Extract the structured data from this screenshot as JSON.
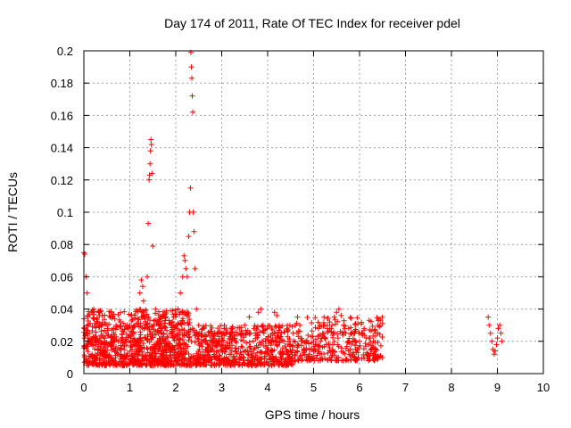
{
  "chart_data": {
    "type": "scatter",
    "title": "Day 174 of 2011, Rate Of TEC Index for receiver pdel",
    "xlabel": "GPS time / hours",
    "ylabel": "ROTI / TECUs",
    "xlim": [
      0,
      10
    ],
    "ylim": [
      0,
      0.2
    ],
    "x_ticks": [
      "0",
      "1",
      "2",
      "3",
      "4",
      "5",
      "6",
      "7",
      "8",
      "9",
      "10"
    ],
    "y_ticks": [
      "0",
      "0.02",
      "0.04",
      "0.06",
      "0.08",
      "0.1",
      "0.12",
      "0.14",
      "0.16",
      "0.18",
      "0.2"
    ],
    "grid": true,
    "marker": "+",
    "color": "#ff0000",
    "series": [
      {
        "name": "ROTI",
        "points": [
          [
            0.0,
            0.075
          ],
          [
            0.02,
            0.074
          ],
          [
            0.05,
            0.06
          ],
          [
            0.07,
            0.05
          ],
          [
            0.08,
            0.035
          ],
          [
            0.1,
            0.03
          ],
          [
            0.12,
            0.025
          ],
          [
            0.15,
            0.02
          ],
          [
            0.18,
            0.012
          ],
          [
            0.22,
            0.01
          ],
          [
            0.25,
            0.008
          ],
          [
            0.3,
            0.015
          ],
          [
            0.35,
            0.03
          ],
          [
            0.4,
            0.036
          ],
          [
            0.45,
            0.02
          ],
          [
            0.5,
            0.012
          ],
          [
            0.55,
            0.01
          ],
          [
            0.6,
            0.018
          ],
          [
            0.65,
            0.025
          ],
          [
            0.7,
            0.03
          ],
          [
            0.75,
            0.02
          ],
          [
            0.8,
            0.015
          ],
          [
            0.85,
            0.01
          ],
          [
            0.9,
            0.02
          ],
          [
            0.95,
            0.028
          ],
          [
            1.0,
            0.03
          ],
          [
            1.05,
            0.025
          ],
          [
            1.1,
            0.018
          ],
          [
            1.15,
            0.012
          ],
          [
            1.2,
            0.02
          ],
          [
            1.22,
            0.05
          ],
          [
            1.25,
            0.058
          ],
          [
            1.28,
            0.054
          ],
          [
            1.3,
            0.045
          ],
          [
            1.32,
            0.035
          ],
          [
            1.35,
            0.03
          ],
          [
            1.38,
            0.06
          ],
          [
            1.4,
            0.093
          ],
          [
            1.42,
            0.12
          ],
          [
            1.43,
            0.123
          ],
          [
            1.44,
            0.13
          ],
          [
            1.45,
            0.138
          ],
          [
            1.46,
            0.145
          ],
          [
            1.47,
            0.142
          ],
          [
            1.48,
            0.124
          ],
          [
            1.5,
            0.079
          ],
          [
            1.52,
            0.03
          ],
          [
            1.55,
            0.025
          ],
          [
            1.6,
            0.02
          ],
          [
            1.65,
            0.03
          ],
          [
            1.7,
            0.028
          ],
          [
            1.75,
            0.02
          ],
          [
            1.8,
            0.015
          ],
          [
            1.85,
            0.01
          ],
          [
            1.9,
            0.03
          ],
          [
            1.95,
            0.035
          ],
          [
            2.0,
            0.03
          ],
          [
            2.05,
            0.04
          ],
          [
            2.1,
            0.05
          ],
          [
            2.15,
            0.06
          ],
          [
            2.18,
            0.073
          ],
          [
            2.2,
            0.07
          ],
          [
            2.22,
            0.065
          ],
          [
            2.25,
            0.06
          ],
          [
            2.28,
            0.085
          ],
          [
            2.3,
            0.1
          ],
          [
            2.32,
            0.115
          ],
          [
            2.33,
            0.199
          ],
          [
            2.34,
            0.19
          ],
          [
            2.35,
            0.183
          ],
          [
            2.36,
            0.172
          ],
          [
            2.37,
            0.162
          ],
          [
            2.38,
            0.1
          ],
          [
            2.4,
            0.088
          ],
          [
            2.42,
            0.065
          ],
          [
            2.45,
            0.04
          ],
          [
            2.5,
            0.03
          ],
          [
            2.55,
            0.025
          ],
          [
            2.6,
            0.02
          ],
          [
            2.65,
            0.015
          ],
          [
            2.7,
            0.012
          ],
          [
            2.75,
            0.01
          ],
          [
            2.8,
            0.015
          ],
          [
            2.85,
            0.02
          ],
          [
            2.9,
            0.025
          ],
          [
            2.95,
            0.02
          ],
          [
            3.0,
            0.018
          ],
          [
            3.05,
            0.015
          ],
          [
            3.1,
            0.01
          ],
          [
            3.15,
            0.008
          ],
          [
            3.2,
            0.012
          ],
          [
            3.3,
            0.02
          ],
          [
            3.4,
            0.025
          ],
          [
            3.5,
            0.03
          ],
          [
            3.6,
            0.035
          ],
          [
            3.7,
            0.028
          ],
          [
            3.8,
            0.038
          ],
          [
            3.85,
            0.04
          ],
          [
            3.9,
            0.03
          ],
          [
            3.95,
            0.02
          ],
          [
            4.0,
            0.015
          ],
          [
            4.05,
            0.02
          ],
          [
            4.1,
            0.025
          ],
          [
            4.15,
            0.038
          ],
          [
            4.2,
            0.036
          ],
          [
            4.25,
            0.03
          ],
          [
            4.3,
            0.025
          ],
          [
            4.35,
            0.02
          ],
          [
            4.4,
            0.015
          ],
          [
            4.45,
            0.012
          ],
          [
            4.5,
            0.018
          ],
          [
            4.55,
            0.025
          ],
          [
            4.6,
            0.03
          ],
          [
            4.65,
            0.035
          ],
          [
            4.7,
            0.03
          ],
          [
            4.75,
            0.02
          ],
          [
            4.8,
            0.015
          ],
          [
            4.85,
            0.01
          ],
          [
            4.9,
            0.012
          ],
          [
            4.95,
            0.015
          ],
          [
            5.0,
            0.02
          ],
          [
            5.05,
            0.018
          ],
          [
            5.1,
            0.015
          ],
          [
            5.15,
            0.02
          ],
          [
            5.2,
            0.025
          ],
          [
            5.25,
            0.022
          ],
          [
            5.3,
            0.028
          ],
          [
            5.35,
            0.032
          ],
          [
            5.4,
            0.03
          ],
          [
            5.45,
            0.035
          ],
          [
            5.5,
            0.038
          ],
          [
            5.55,
            0.04
          ],
          [
            5.6,
            0.036
          ],
          [
            5.65,
            0.03
          ],
          [
            5.7,
            0.025
          ],
          [
            5.75,
            0.02
          ],
          [
            5.8,
            0.015
          ],
          [
            5.85,
            0.012
          ],
          [
            5.9,
            0.01
          ],
          [
            5.95,
            0.015
          ],
          [
            6.0,
            0.02
          ],
          [
            6.05,
            0.025
          ],
          [
            6.1,
            0.028
          ],
          [
            6.15,
            0.022
          ],
          [
            6.2,
            0.018
          ],
          [
            6.25,
            0.015
          ],
          [
            6.3,
            0.02
          ],
          [
            6.35,
            0.025
          ],
          [
            6.4,
            0.03
          ],
          [
            6.45,
            0.033
          ],
          [
            6.5,
            0.031
          ],
          [
            8.8,
            0.035
          ],
          [
            8.82,
            0.03
          ],
          [
            8.85,
            0.025
          ],
          [
            8.88,
            0.02
          ],
          [
            8.9,
            0.015
          ],
          [
            8.93,
            0.012
          ],
          [
            8.95,
            0.014
          ],
          [
            8.98,
            0.018
          ],
          [
            9.0,
            0.022
          ],
          [
            9.02,
            0.028
          ],
          [
            9.05,
            0.03
          ],
          [
            9.08,
            0.025
          ],
          [
            9.1,
            0.02
          ]
        ],
        "dense_bands": [
          {
            "x": [
              0.0,
              2.3
            ],
            "y": [
              0.005,
              0.04
            ],
            "count": 900
          },
          {
            "x": [
              2.3,
              4.6
            ],
            "y": [
              0.005,
              0.03
            ],
            "count": 600
          },
          {
            "x": [
              4.6,
              6.5
            ],
            "y": [
              0.008,
              0.035
            ],
            "count": 300
          }
        ]
      }
    ]
  }
}
